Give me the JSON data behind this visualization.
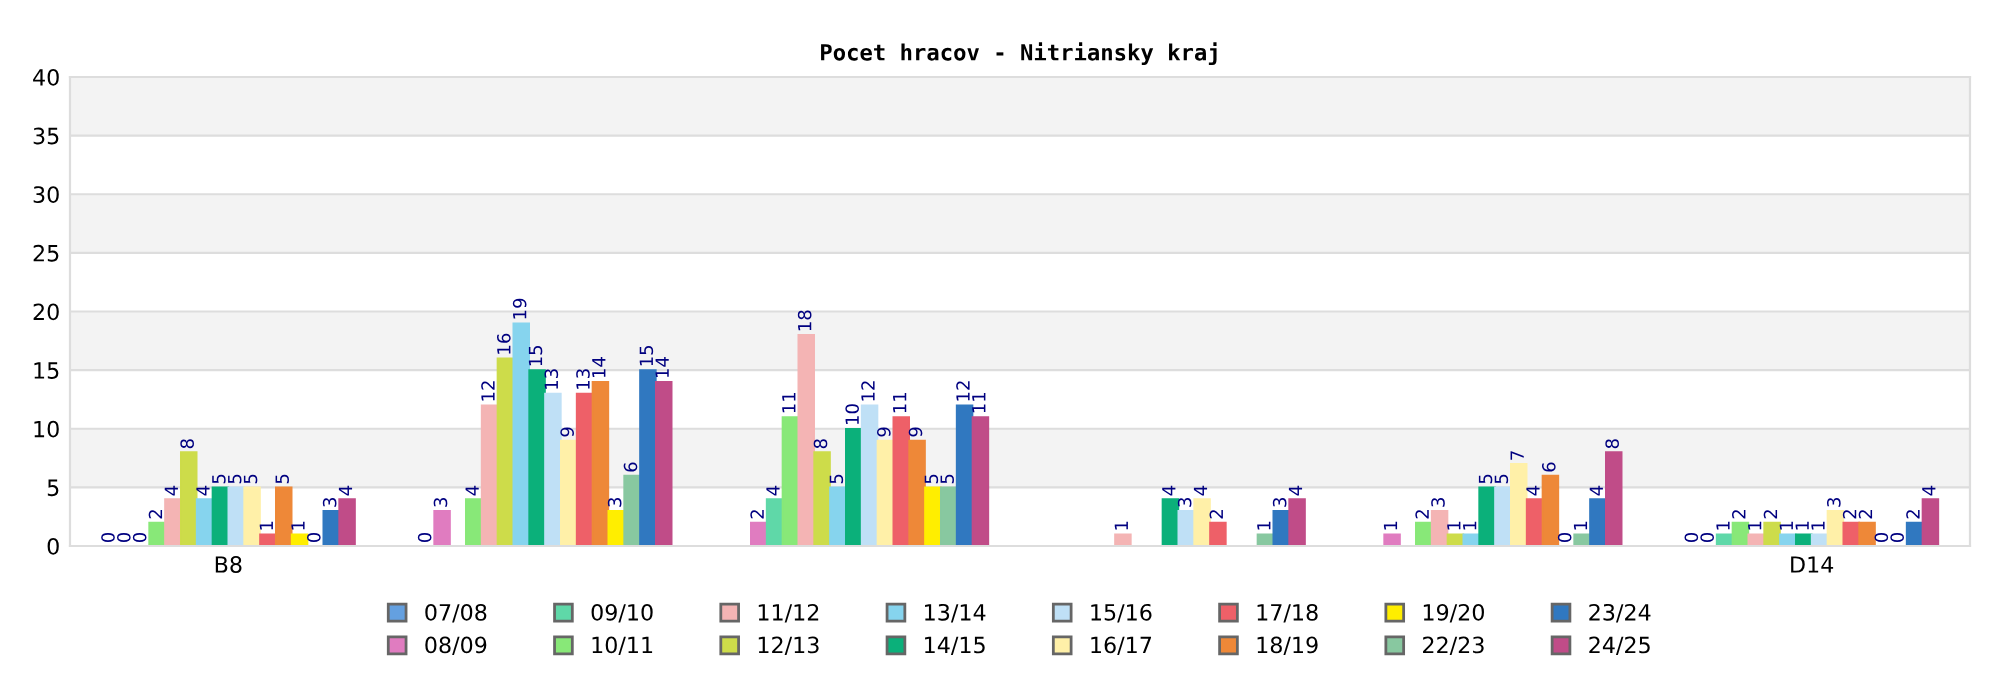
{
  "chart_data": {
    "type": "bar",
    "title": "Pocet hracov - Nitriansky kraj",
    "categories": [
      "B8",
      null,
      null,
      null,
      null,
      "D14"
    ],
    "ylim": [
      0,
      40
    ],
    "yticks": [
      0,
      5,
      10,
      15,
      20,
      25,
      30,
      35,
      40
    ],
    "grid": "y",
    "legend": "bottom",
    "data_labels": true,
    "series": [
      {
        "name": "07/08",
        "color": "#64a0e0",
        "values": [
          0,
          0,
          null,
          null,
          null,
          0
        ]
      },
      {
        "name": "08/09",
        "color": "#e07cc0",
        "values": [
          0,
          3,
          2,
          null,
          1,
          0
        ]
      },
      {
        "name": "09/10",
        "color": "#5fd8a8",
        "values": [
          0,
          null,
          4,
          null,
          null,
          1
        ]
      },
      {
        "name": "10/11",
        "color": "#88e878",
        "values": [
          2,
          4,
          11,
          null,
          2,
          2
        ]
      },
      {
        "name": "11/12",
        "color": "#f4b4b4",
        "values": [
          4,
          12,
          18,
          1,
          3,
          1
        ]
      },
      {
        "name": "12/13",
        "color": "#cddc4a",
        "values": [
          8,
          16,
          8,
          null,
          1,
          2
        ]
      },
      {
        "name": "13/14",
        "color": "#86d4ee",
        "values": [
          4,
          19,
          5,
          null,
          1,
          1
        ]
      },
      {
        "name": "14/15",
        "color": "#0bb07a",
        "values": [
          5,
          15,
          10,
          4,
          5,
          1
        ]
      },
      {
        "name": "15/16",
        "color": "#bfe0f6",
        "values": [
          5,
          13,
          12,
          3,
          5,
          1
        ]
      },
      {
        "name": "16/17",
        "color": "#fff0a8",
        "values": [
          5,
          9,
          9,
          4,
          7,
          3
        ]
      },
      {
        "name": "17/18",
        "color": "#ee6068",
        "values": [
          1,
          13,
          11,
          2,
          4,
          2
        ]
      },
      {
        "name": "18/19",
        "color": "#ee8838",
        "values": [
          5,
          14,
          9,
          null,
          6,
          2
        ]
      },
      {
        "name": "19/20",
        "color": "#ffee00",
        "values": [
          1,
          3,
          5,
          null,
          0,
          0
        ]
      },
      {
        "name": "22/23",
        "color": "#88c8a0",
        "values": [
          0,
          6,
          5,
          1,
          1,
          0
        ]
      },
      {
        "name": "23/24",
        "color": "#3078c0",
        "values": [
          3,
          15,
          12,
          3,
          4,
          2
        ]
      },
      {
        "name": "24/25",
        "color": "#c04c88",
        "values": [
          4,
          14,
          11,
          4,
          8,
          4
        ]
      }
    ]
  }
}
